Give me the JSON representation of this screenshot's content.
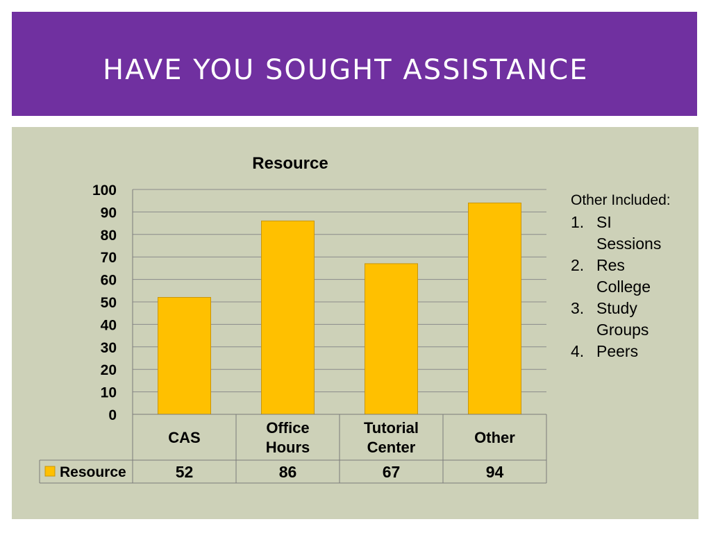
{
  "slide": {
    "title": "HAVE YOU SOUGHT ASSISTANCE"
  },
  "colors": {
    "title_bg": "#7030a0",
    "title_text": "#ffffff",
    "content_bg": "#cdd1b8",
    "bar_fill": "#ffc000",
    "bar_stroke": "#c8960a"
  },
  "chart_data": {
    "type": "bar",
    "title": "Resource",
    "categories": [
      "CAS",
      "Office Hours",
      "Tutorial Center",
      "Other"
    ],
    "category_lines": [
      [
        "CAS"
      ],
      [
        "Office",
        "Hours"
      ],
      [
        "Tutorial",
        "Center"
      ],
      [
        "Other"
      ]
    ],
    "series": [
      {
        "name": "Resource",
        "values": [
          52,
          86,
          67,
          94
        ]
      }
    ],
    "ylim": [
      0,
      100
    ],
    "yticks": [
      0,
      10,
      20,
      30,
      40,
      50,
      60,
      70,
      80,
      90,
      100
    ],
    "grid": true,
    "legend": "data-table-left",
    "data_table": true
  },
  "side_note": {
    "heading": "Other Included:",
    "items": [
      {
        "num": "1.",
        "text": "SI Sessions"
      },
      {
        "num": "2.",
        "text": "Res College"
      },
      {
        "num": "3.",
        "text": "Study Groups"
      },
      {
        "num": "4.",
        "text": "Peers"
      }
    ]
  }
}
